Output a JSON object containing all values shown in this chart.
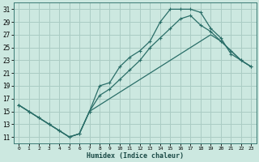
{
  "xlabel": "Humidex (Indice chaleur)",
  "background_color": "#cce8e0",
  "grid_color": "#aaccc4",
  "line_color": "#2a6e68",
  "xlim": [
    -0.5,
    23.5
  ],
  "ylim": [
    10.0,
    32.0
  ],
  "xtick_labels": [
    "0",
    "1",
    "2",
    "3",
    "4",
    "5",
    "6",
    "7",
    "8",
    "9",
    "10",
    "11",
    "12",
    "13",
    "14",
    "15",
    "16",
    "17",
    "18",
    "19",
    "20",
    "21",
    "22",
    "23"
  ],
  "xtick_vals": [
    0,
    1,
    2,
    3,
    4,
    5,
    6,
    7,
    8,
    9,
    10,
    11,
    12,
    13,
    14,
    15,
    16,
    17,
    18,
    19,
    20,
    21,
    22,
    23
  ],
  "ytick_vals": [
    11,
    13,
    15,
    17,
    19,
    21,
    23,
    25,
    27,
    29,
    31
  ],
  "line1_x": [
    0,
    1,
    2,
    3,
    4,
    5,
    6,
    7,
    8,
    9,
    10,
    11,
    12,
    13,
    14,
    15,
    16,
    17,
    18,
    19,
    20,
    21,
    22,
    23
  ],
  "line1_y": [
    16,
    15,
    14,
    13,
    12,
    11,
    11.5,
    15,
    19,
    19.5,
    22,
    23.5,
    24.5,
    26,
    29,
    31,
    31,
    31,
    30.5,
    28,
    26.5,
    24,
    23,
    22
  ],
  "line2_x": [
    0,
    2,
    3,
    4,
    5,
    6,
    7,
    8,
    9,
    10,
    11,
    12,
    13,
    14,
    15,
    16,
    17,
    18,
    19,
    20,
    21,
    22,
    23
  ],
  "line2_y": [
    16,
    14,
    13,
    12,
    11,
    11.5,
    15,
    16,
    17,
    18,
    19,
    20,
    21,
    22,
    23,
    24,
    25,
    26,
    27,
    26,
    24.5,
    23,
    22
  ],
  "line3_x": [
    0,
    1,
    2,
    3,
    4,
    5,
    6,
    7,
    8,
    9,
    10,
    11,
    12,
    13,
    14,
    15,
    16,
    17,
    18,
    19,
    20,
    21,
    22,
    23
  ],
  "line3_y": [
    16,
    15,
    14,
    13,
    12,
    11,
    11.5,
    15,
    17.5,
    18.5,
    20,
    21.5,
    23,
    25,
    26.5,
    28,
    29.5,
    30,
    28.5,
    27.5,
    26,
    24.5,
    23,
    22
  ]
}
